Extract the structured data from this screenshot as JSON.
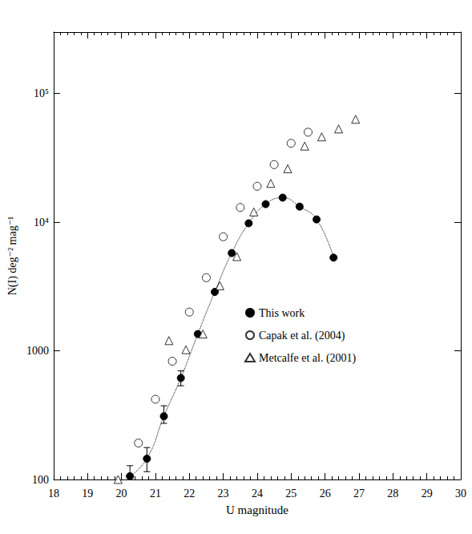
{
  "chart_data": {
    "type": "scatter",
    "x_label": "U magnitude",
    "y_label": "N(I) deg⁻² mag⁻¹",
    "xlim": [
      18,
      30
    ],
    "xticks": [
      18,
      19,
      20,
      21,
      22,
      23,
      24,
      25,
      26,
      27,
      28,
      29,
      30
    ],
    "ylim": [
      100,
      300000
    ],
    "yticks": [
      100,
      1000,
      {
        "value": 10000,
        "label": "10⁴"
      },
      {
        "value": 100000,
        "label": "10⁵"
      }
    ],
    "log": "y",
    "legend": "right",
    "series": [
      {
        "name": "This work",
        "type": "line",
        "marker": "filled_circle",
        "line_style": "dotted",
        "color": "#000000",
        "x": [
          20.25,
          20.75,
          21.25,
          21.75,
          22.25,
          22.75,
          23.25,
          23.75,
          24.25,
          24.75,
          25.25,
          25.75,
          26.25
        ],
        "values": [
          106,
          145,
          310,
          615,
          1350,
          2870,
          5750,
          9800,
          13800,
          15500,
          13200,
          10500,
          5300
        ],
        "errors": [
          [
            80,
            128
          ],
          [
            115,
            177
          ],
          [
            273,
            374
          ],
          [
            535,
            700
          ],
          null,
          null,
          null,
          null,
          null,
          null,
          null,
          null,
          null
        ]
      },
      {
        "name": "Capak et al. (2004)",
        "type": "scatter",
        "marker": "open_circle",
        "color": "#000000",
        "x": [
          20.5,
          21.0,
          21.5,
          22.0,
          22.5,
          23.0,
          23.5,
          24.0,
          24.5,
          25.0,
          25.5
        ],
        "values": [
          192,
          420,
          830,
          2000,
          3700,
          7700,
          13000,
          19000,
          28000,
          41000,
          50000
        ]
      },
      {
        "name": "Metcalfe et al. (2001)",
        "type": "scatter",
        "marker": "open_triangle",
        "color": "#000000",
        "x": [
          19.9,
          21.4,
          21.9,
          22.4,
          22.9,
          23.4,
          23.9,
          24.4,
          24.9,
          25.4,
          25.9,
          26.4,
          26.9
        ],
        "values": [
          100,
          1200,
          1020,
          1350,
          3200,
          5400,
          12000,
          20000,
          26000,
          39000,
          46000,
          53000,
          63000
        ]
      }
    ]
  }
}
